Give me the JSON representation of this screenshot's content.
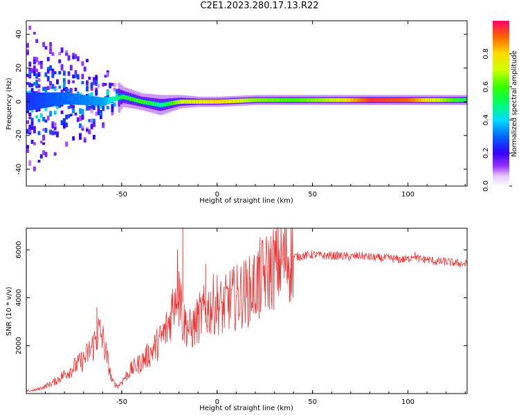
{
  "title": "C2E1.2023.280.17.13.R22",
  "colors": {
    "snr_line": "#ee3333",
    "axis": "#000000"
  },
  "chart_data": [
    {
      "type": "heatmap",
      "xlabel": "Height of straight line (km)",
      "ylabel": "Frequency (Hz)",
      "xlim": [
        -100,
        131
      ],
      "ylim": [
        -50,
        48
      ],
      "xticks": [
        -50,
        0,
        50,
        100
      ],
      "yticks": [
        -40,
        -20,
        0,
        20,
        40
      ],
      "grid": false,
      "colorbar": {
        "label": "Normalized spectral amplitude",
        "range": [
          0,
          1
        ],
        "ticks": [
          0.0,
          0.2,
          0.4,
          0.6,
          0.8
        ],
        "tick_labels": [
          "0.0",
          "0.2",
          "0.4",
          "0.6",
          "0.8"
        ]
      },
      "description_note": "",
      "peak_track": {
        "x": [
          -100,
          -80,
          -60,
          -50,
          -40,
          -30,
          -20,
          -10,
          0,
          20,
          40,
          60,
          80,
          100,
          131
        ],
        "freq": [
          0,
          2,
          0,
          3,
          0,
          -2,
          0,
          0,
          0,
          1,
          1,
          1,
          1,
          1,
          1
        ],
        "amplitude": [
          0.25,
          0.3,
          0.35,
          0.55,
          0.6,
          0.45,
          0.7,
          0.75,
          0.8,
          0.65,
          0.6,
          0.7,
          0.95,
          0.9,
          0.5
        ],
        "spread_hz": [
          45,
          30,
          20,
          6,
          5,
          6,
          4,
          3,
          3,
          3,
          3,
          3,
          3,
          3,
          3
        ]
      }
    },
    {
      "type": "line",
      "xlabel": "Height of straight line (km)",
      "ylabel": "SNR (10 * v/v)",
      "xlim": [
        -100,
        131
      ],
      "ylim": [
        0,
        6900
      ],
      "xticks": [
        -50,
        0,
        50,
        100
      ],
      "yticks": [
        2000,
        4000,
        6000
      ],
      "grid": false,
      "series": [
        {
          "x": [
            -100,
            -95,
            -90,
            -85,
            -80,
            -75,
            -70,
            -65,
            -62,
            -60,
            -58,
            -55,
            -52,
            -50,
            -45,
            -40,
            -35,
            -30,
            -27,
            -25,
            -22,
            -20,
            -18,
            -16,
            -14,
            -12,
            -10,
            -8,
            -5,
            -2,
            0,
            3,
            6,
            10,
            14,
            18,
            22,
            26,
            30,
            35,
            40,
            45,
            50,
            55,
            60,
            65,
            70,
            75,
            80,
            85,
            90,
            95,
            100,
            103,
            106,
            110,
            115,
            120,
            125,
            131
          ],
          "values": [
            100,
            150,
            300,
            500,
            800,
            1100,
            1400,
            2000,
            2600,
            2300,
            1600,
            500,
            300,
            500,
            1000,
            1300,
            1700,
            2200,
            2600,
            3000,
            4200,
            5000,
            3000,
            2900,
            2600,
            2800,
            3100,
            3300,
            3500,
            3700,
            3800,
            3500,
            3900,
            4000,
            4200,
            4300,
            4800,
            5000,
            5300,
            5600,
            5700,
            5750,
            5800,
            5750,
            5750,
            5750,
            5700,
            5750,
            5700,
            5650,
            5650,
            5600,
            5600,
            5800,
            5600,
            5600,
            5500,
            5500,
            5450,
            5400
          ],
          "spikes": [
            {
              "x": -63,
              "value": 3600
            },
            {
              "x": -18,
              "value": 6900
            },
            {
              "x": -20,
              "value": 5100
            },
            {
              "x": -6,
              "value": 5400
            },
            {
              "x": 22,
              "value": 5700
            }
          ]
        }
      ]
    }
  ]
}
